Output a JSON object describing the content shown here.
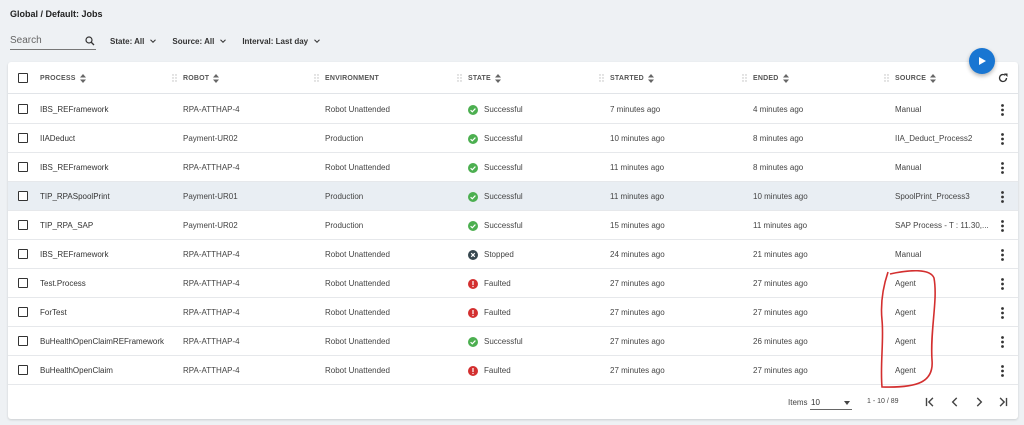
{
  "breadcrumb": "Global / Default: Jobs",
  "search": {
    "placeholder": "Search"
  },
  "filters": [
    {
      "label": "State: All"
    },
    {
      "label": "Source: All"
    },
    {
      "label": "Interval: Last day"
    }
  ],
  "columns": [
    "PROCESS",
    "ROBOT",
    "ENVIRONMENT",
    "STATE",
    "STARTED",
    "ENDED",
    "SOURCE"
  ],
  "rows": [
    {
      "process": "IBS_REFramework",
      "robot": "RPA-ATTHAP-4",
      "environment": "Robot Unattended",
      "state": "Successful",
      "started": "7 minutes ago",
      "ended": "4 minutes ago",
      "source": "Manual"
    },
    {
      "process": "IIADeduct",
      "robot": "Payment-UR02",
      "environment": "Production",
      "state": "Successful",
      "started": "10 minutes ago",
      "ended": "8 minutes ago",
      "source": "IIA_Deduct_Process2"
    },
    {
      "process": "IBS_REFramework",
      "robot": "RPA-ATTHAP-4",
      "environment": "Robot Unattended",
      "state": "Successful",
      "started": "11 minutes ago",
      "ended": "8 minutes ago",
      "source": "Manual"
    },
    {
      "process": "TIP_RPASpoolPrint",
      "robot": "Payment-UR01",
      "environment": "Production",
      "state": "Successful",
      "started": "11 minutes ago",
      "ended": "10 minutes ago",
      "source": "SpoolPrint_Process3"
    },
    {
      "process": "TIP_RPA_SAP",
      "robot": "Payment-UR02",
      "environment": "Production",
      "state": "Successful",
      "started": "15 minutes ago",
      "ended": "11 minutes ago",
      "source": "SAP Process - T : 11.30,..."
    },
    {
      "process": "IBS_REFramework",
      "robot": "RPA-ATTHAP-4",
      "environment": "Robot Unattended",
      "state": "Stopped",
      "started": "24 minutes ago",
      "ended": "21 minutes ago",
      "source": "Manual"
    },
    {
      "process": "Test.Process",
      "robot": "RPA-ATTHAP-4",
      "environment": "Robot Unattended",
      "state": "Faulted",
      "started": "27 minutes ago",
      "ended": "27 minutes ago",
      "source": "Agent"
    },
    {
      "process": "ForTest",
      "robot": "RPA-ATTHAP-4",
      "environment": "Robot Unattended",
      "state": "Faulted",
      "started": "27 minutes ago",
      "ended": "27 minutes ago",
      "source": "Agent"
    },
    {
      "process": "BuHealthOpenClaimREFramework",
      "robot": "RPA-ATTHAP-4",
      "environment": "Robot Unattended",
      "state": "Successful",
      "started": "27 minutes ago",
      "ended": "26 minutes ago",
      "source": "Agent"
    },
    {
      "process": "BuHealthOpenClaim",
      "robot": "RPA-ATTHAP-4",
      "environment": "Robot Unattended",
      "state": "Faulted",
      "started": "27 minutes ago",
      "ended": "27 minutes ago",
      "source": "Agent"
    }
  ],
  "footer": {
    "items_label": "Items",
    "items_value": "10",
    "range": "1 - 10 / 89"
  },
  "colors": {
    "accent": "#1976d2",
    "success": "#4caf50",
    "faulted": "#d32f2f",
    "stopped": "#37474f",
    "annotation": "#d32f2f"
  }
}
